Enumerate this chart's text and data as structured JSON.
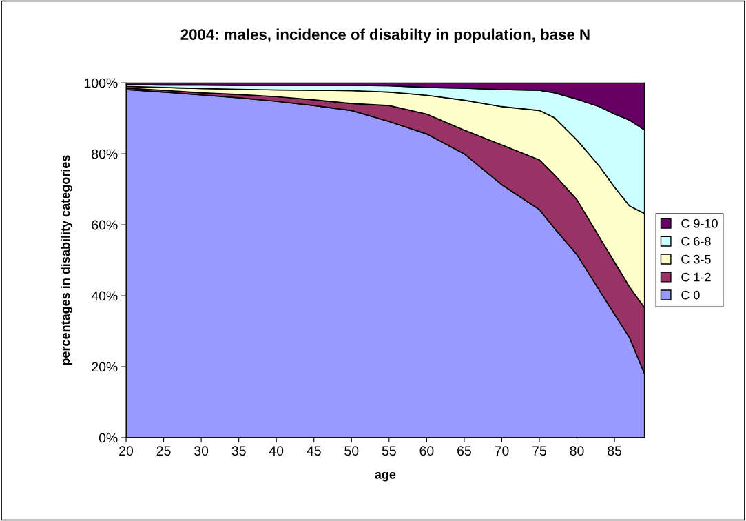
{
  "chart_data": {
    "type": "area",
    "stacked": true,
    "title": "2004: males, incidence of disabilty in population, base N",
    "xlabel": "age",
    "ylabel": "percentages in disability categories",
    "x": [
      20,
      25,
      30,
      35,
      40,
      45,
      50,
      55,
      60,
      65,
      70,
      75,
      77,
      80,
      83,
      85,
      87,
      89
    ],
    "series": [
      {
        "name": "C 0",
        "color": "#9999ff",
        "values": [
          98.1,
          97.4,
          96.6,
          95.8,
          94.8,
          93.6,
          92.2,
          89.1,
          85.6,
          80.0,
          71.3,
          64.3,
          59.0,
          51.6,
          41.5,
          34.8,
          28.2,
          18.0
        ]
      },
      {
        "name": "C 1-2",
        "color": "#993366",
        "values": [
          0.4,
          0.5,
          0.6,
          0.9,
          1.3,
          1.6,
          2.0,
          4.5,
          5.6,
          6.7,
          11.2,
          14.0,
          15.1,
          15.5,
          15.0,
          14.7,
          14.3,
          18.6
        ]
      },
      {
        "name": "C 3-5",
        "color": "#ffffcc",
        "values": [
          0.5,
          0.8,
          1.2,
          1.5,
          1.9,
          2.7,
          3.6,
          3.8,
          5.3,
          8.4,
          10.8,
          13.9,
          16.1,
          16.8,
          20.0,
          21.1,
          22.8,
          26.6
        ]
      },
      {
        "name": "C 6-8",
        "color": "#ccffff",
        "values": [
          0.5,
          0.7,
          1.0,
          1.1,
          1.3,
          1.4,
          1.5,
          1.8,
          2.2,
          3.4,
          4.8,
          5.7,
          7.0,
          11.5,
          16.8,
          20.6,
          24.2,
          23.5
        ]
      },
      {
        "name": "C 9-10",
        "color": "#660066",
        "values": [
          0.5,
          0.6,
          0.6,
          0.7,
          0.7,
          0.7,
          0.7,
          0.8,
          1.3,
          1.5,
          1.9,
          2.1,
          2.8,
          4.6,
          6.7,
          8.8,
          10.5,
          13.3
        ]
      }
    ],
    "xlim": [
      20,
      89
    ],
    "xticks": [
      20,
      25,
      30,
      35,
      40,
      45,
      50,
      55,
      60,
      65,
      70,
      75,
      80,
      85
    ],
    "ylim": [
      0,
      100
    ],
    "yticks": [
      {
        "value": 0,
        "label": "0%"
      },
      {
        "value": 20,
        "label": "20%"
      },
      {
        "value": 40,
        "label": "40%"
      },
      {
        "value": 60,
        "label": "60%"
      },
      {
        "value": 80,
        "label": "80%"
      },
      {
        "value": 100,
        "label": "100%"
      }
    ],
    "grid": false,
    "legend": "right"
  }
}
